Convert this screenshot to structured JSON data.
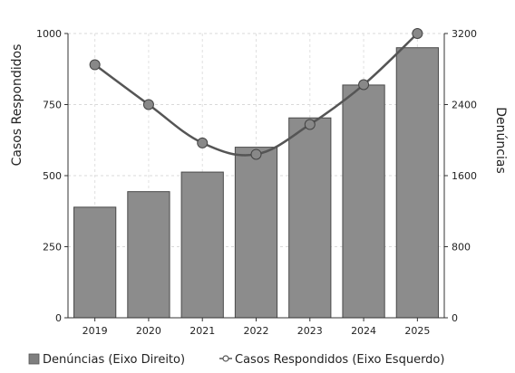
{
  "chart_data": {
    "type": "bar",
    "categories": [
      "2019",
      "2020",
      "2021",
      "2022",
      "2023",
      "2024",
      "2025"
    ],
    "series": [
      {
        "name": "Denúncias (Eixo Direito)",
        "type": "bar",
        "axis": "right",
        "values": [
          1245,
          1420,
          1640,
          1920,
          2250,
          2620,
          3040
        ],
        "color": "#8c8c8c"
      },
      {
        "name": "Casos Respondidos (Eixo Esquerdo)",
        "type": "line",
        "axis": "left",
        "values": [
          890,
          750,
          615,
          575,
          680,
          820,
          1000
        ],
        "color": "#555555",
        "marker_color": "#888888"
      }
    ],
    "y_left": {
      "label": "Casos Respondidos",
      "range": [
        0,
        1000
      ],
      "ticks": [
        "0",
        "250",
        "500",
        "750",
        "1000"
      ]
    },
    "y_right": {
      "label": "Denúncias",
      "range": [
        0,
        3200
      ],
      "ticks": [
        "0",
        "800",
        "1600",
        "2400",
        "3200"
      ]
    },
    "grid": true,
    "legend": "bottom"
  }
}
